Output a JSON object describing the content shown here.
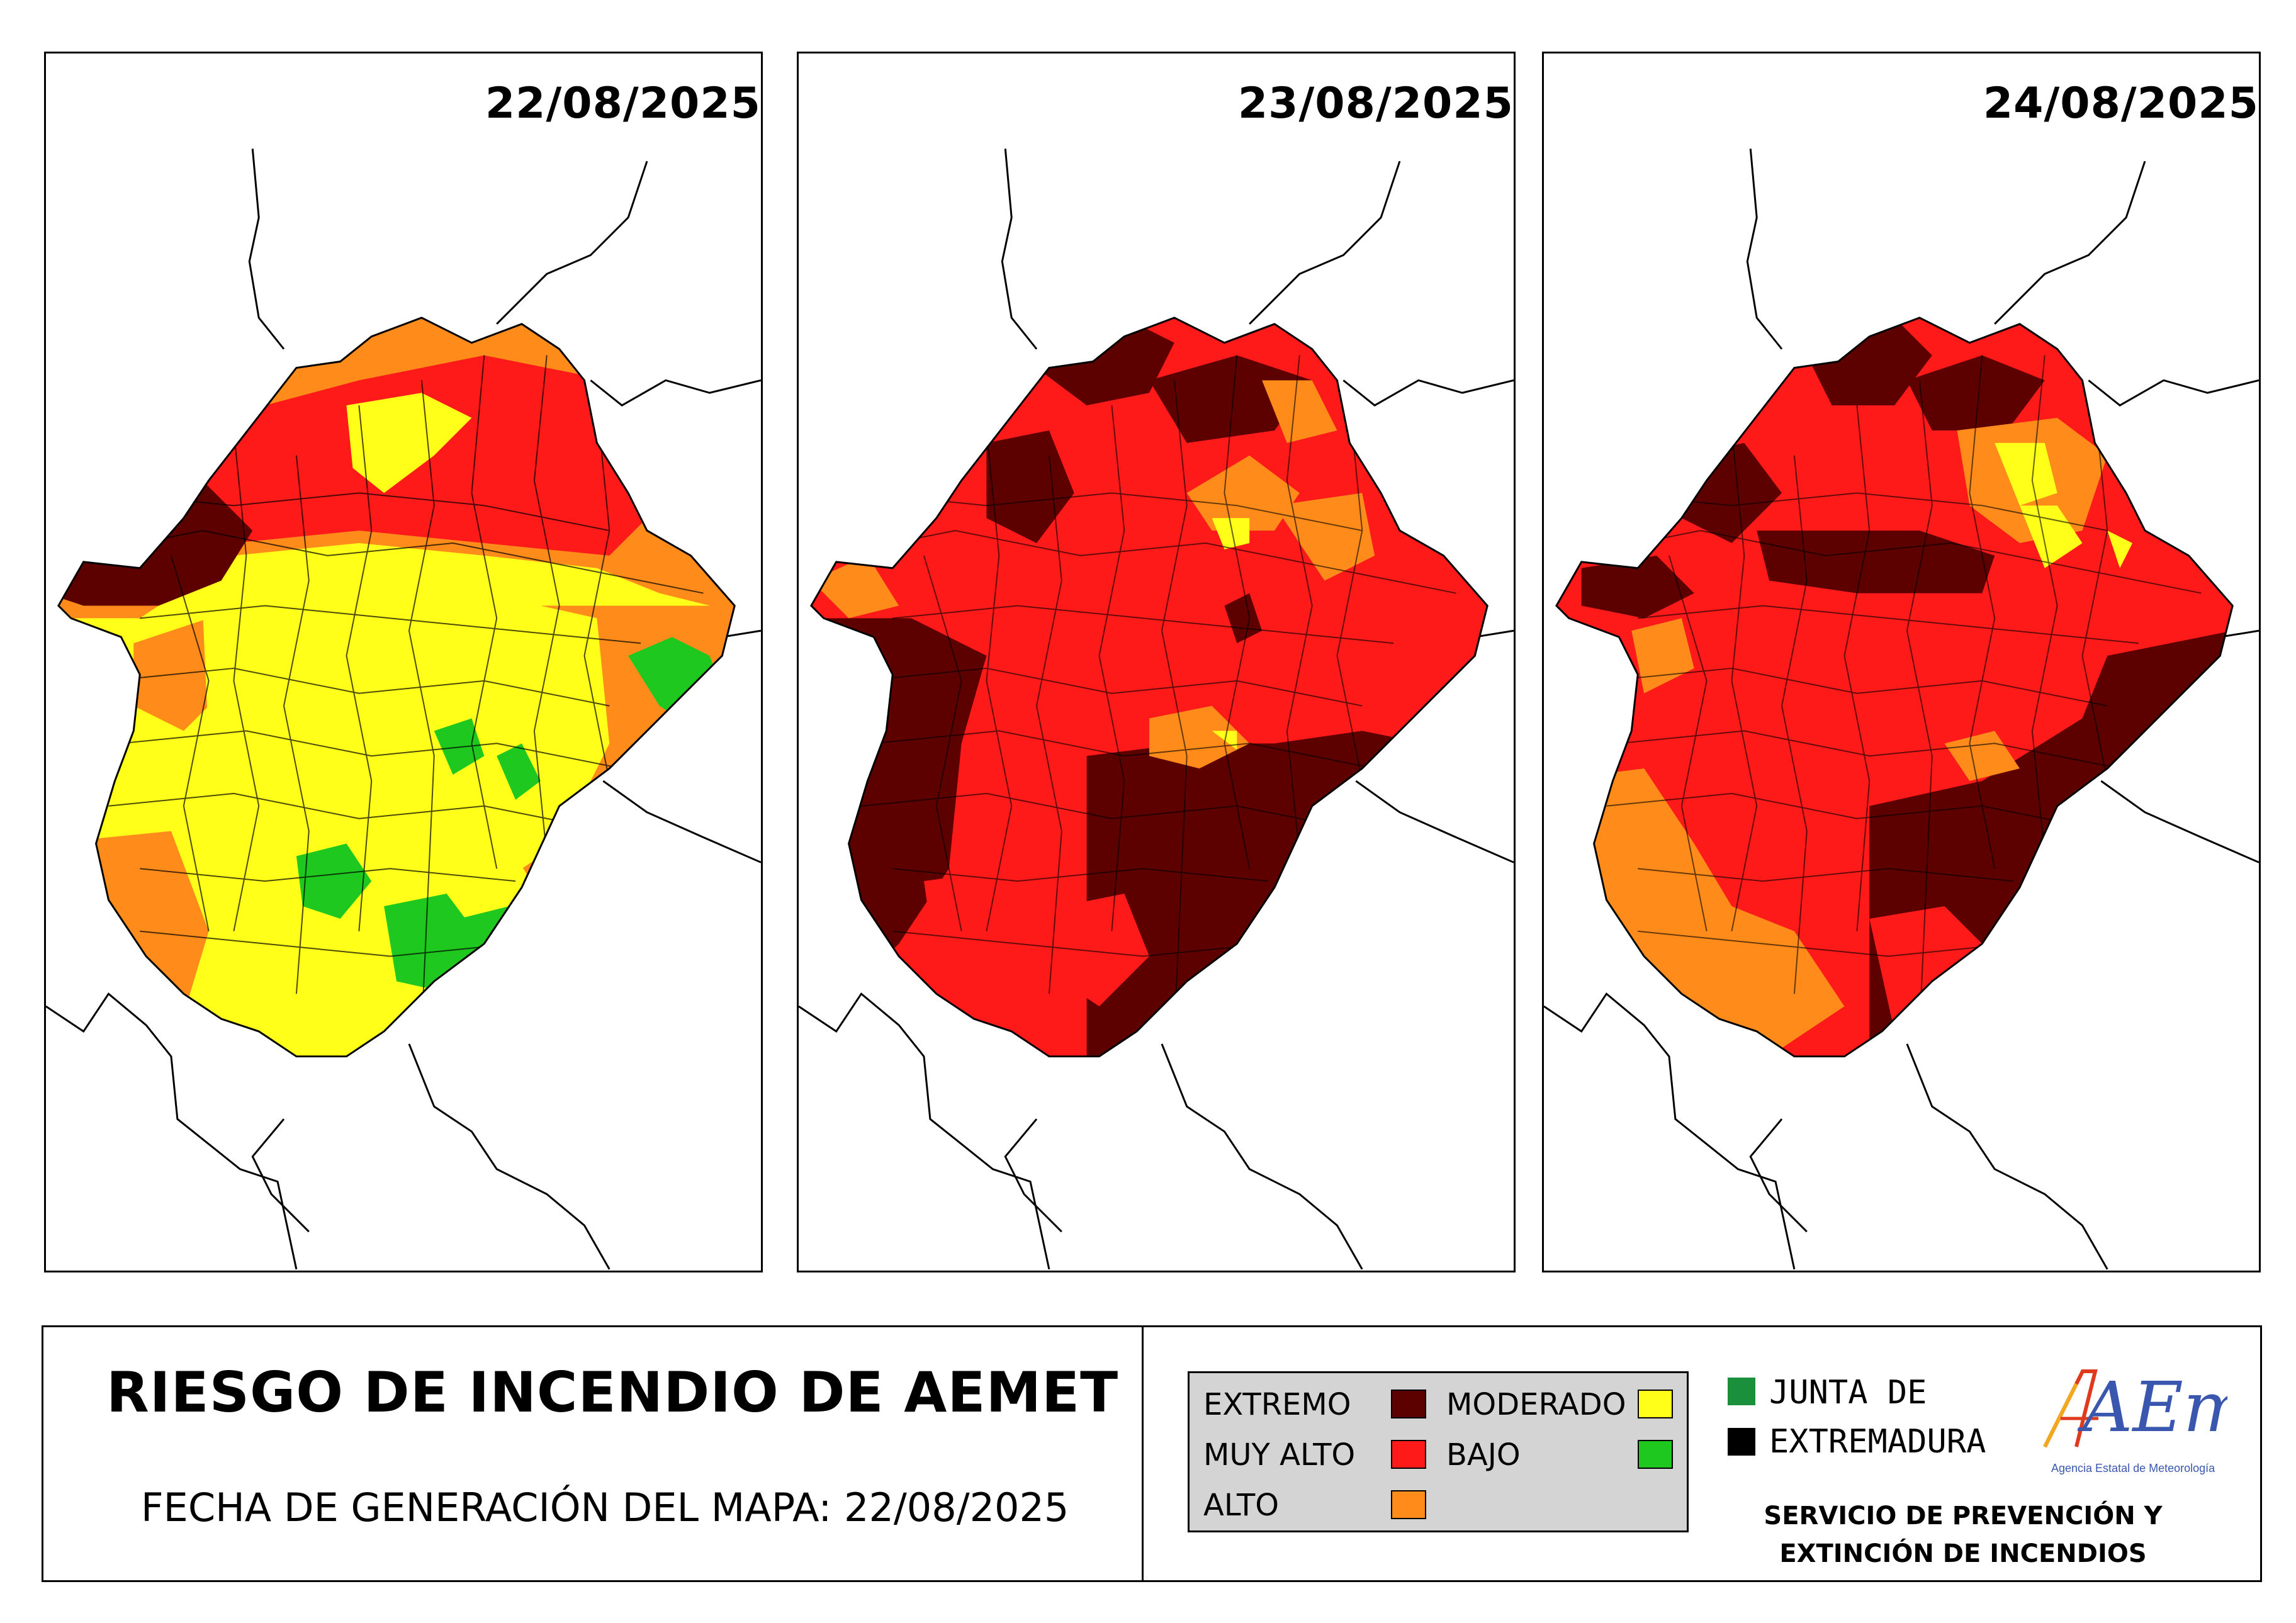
{
  "maps": [
    {
      "date": "22/08/2025"
    },
    {
      "date": "23/08/2025"
    },
    {
      "date": "24/08/2025"
    }
  ],
  "footer": {
    "title": "RIESGO DE INCENDIO DE AEMET",
    "generation_date": "FECHA DE GENERACIÓN DEL MAPA: 22/08/2025",
    "legend": [
      {
        "label": "EXTREMO",
        "color": "#5c0000"
      },
      {
        "label": "MUY ALTO",
        "color": "#ff1a1a"
      },
      {
        "label": "ALTO",
        "color": "#ff8c1a"
      },
      {
        "label": "MODERADO",
        "color": "#ffff1a"
      },
      {
        "label": "BAJO",
        "color": "#1ec81e"
      }
    ],
    "junta": {
      "line1": "JUNTA DE",
      "line2": "EXTREMADURA",
      "green": "#1a8f3c",
      "black": "#000000"
    },
    "aemet": {
      "logo_text": "AEmet",
      "subtitle": "Agencia Estatal de Meteorología",
      "color": "#3a57b0"
    },
    "service": {
      "line1": "SERVICIO DE PREVENCIÓN Y",
      "line2": "EXTINCIÓN DE INCENDIOS"
    }
  }
}
